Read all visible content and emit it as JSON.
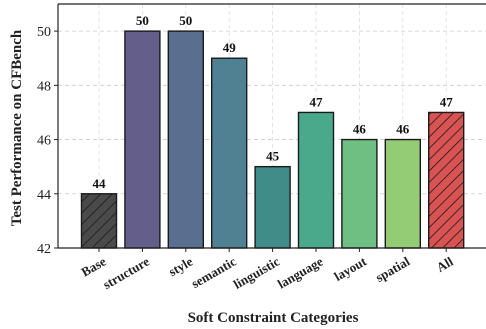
{
  "chart_data": {
    "type": "bar",
    "categories": [
      "Base",
      "structure",
      "style",
      "semantic",
      "linguistic",
      "language",
      "layout",
      "spatial",
      "All"
    ],
    "values": [
      44,
      50,
      50,
      49,
      45,
      47,
      46,
      46,
      47
    ],
    "data_labels": [
      "44",
      "50",
      "50",
      "49",
      "45",
      "47",
      "46",
      "46",
      "47"
    ],
    "colors": [
      "#4a4a4a",
      "#645e8a",
      "#5a6e90",
      "#4f8192",
      "#3f8c88",
      "#4aa98b",
      "#6fbf82",
      "#94cc76",
      "#d95352"
    ],
    "hatched": [
      true,
      false,
      false,
      false,
      false,
      false,
      false,
      false,
      true
    ],
    "xlabel": "Soft Constraint Categories",
    "ylabel": "Test Performance on CFBench",
    "ylim": [
      42,
      51
    ],
    "yticks": [
      42,
      44,
      46,
      48,
      50
    ],
    "grid": true
  }
}
